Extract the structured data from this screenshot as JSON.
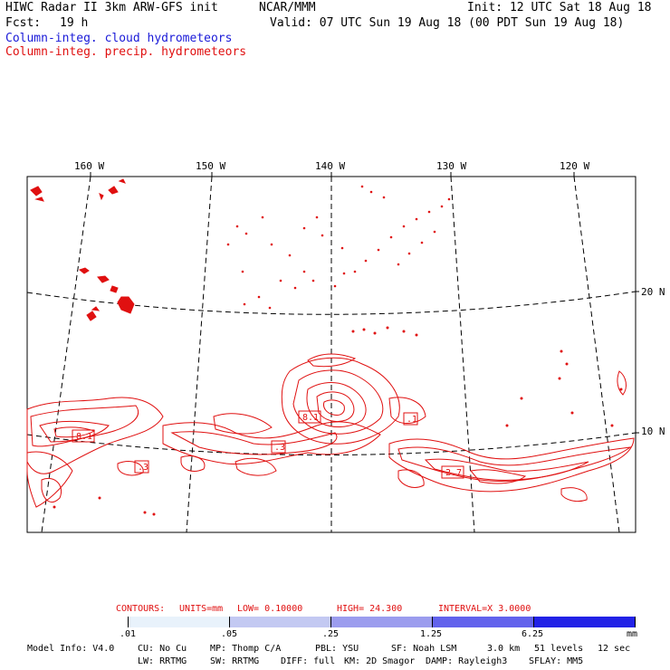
{
  "header": {
    "title": "HIWC Radar II 3km ARW-GFS init",
    "org": "NCAR/MMM",
    "init": "Init: 12 UTC Sat 18 Aug 18",
    "fcst_label": "Fcst:",
    "fcst_value": "19 h",
    "valid": "Valid: 07 UTC Sun 19 Aug 18 (00 PDT Sun 19 Aug 18)"
  },
  "legend_lines": {
    "cloud": "Column-integ. cloud hydrometeors",
    "precip": "Column-integ. precip. hydrometeors"
  },
  "colors": {
    "cloud": "#1a1ad8",
    "precip": "#e01010",
    "land": "#e01010"
  },
  "map": {
    "lon_labels": [
      "160 W",
      "150 W",
      "140 W",
      "130 W",
      "120 W"
    ],
    "lat_labels": [
      "20 N",
      "10 N"
    ],
    "contour_value_labels": [
      "8.1",
      "8.1",
      ".1",
      ".3",
      ".3",
      "2.7"
    ]
  },
  "contours_info": {
    "label": "CONTOURS:",
    "units": "UNITS=mm",
    "low": "LOW= 0.10000",
    "high": "HIGH= 24.300",
    "interval": "INTERVAL=X 3.0000"
  },
  "colorbar": {
    "ticks": [
      ".01",
      ".05",
      ".25",
      "1.25",
      "6.25"
    ],
    "unit": "mm",
    "colors": [
      "#ffffff",
      "#e8f2fb",
      "#c3c9f2",
      "#9b9cee",
      "#6262ec",
      "#2222e6"
    ]
  },
  "model_info": {
    "line1": [
      "Model Info: V4.0",
      "CU: No Cu",
      "MP: Thomp C/A",
      "PBL: YSU",
      "SF: Noah LSM",
      "3.0 km",
      "51 levels",
      "12 sec"
    ],
    "line2": [
      "LW: RRTMG",
      "SW: RRTMG",
      "DIFF: full",
      "KM: 2D Smagor",
      "DAMP: Rayleigh3",
      "SFLAY: MM5"
    ]
  }
}
